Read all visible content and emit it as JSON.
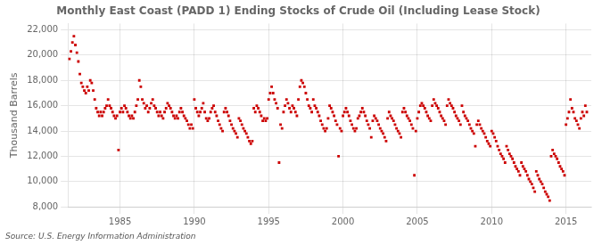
{
  "chart_data": {
    "type": "scatter",
    "title": "Monthly East Coast (PADD 1) Ending Stocks of Crude Oil (Including Lease Stock)",
    "y_label": "Thousand Barrels",
    "annotation": "Source: U.S. Energy Information Administration",
    "color": "#cc0000",
    "marker": "square",
    "grid": true,
    "xlim": [
      1981.5,
      2016.7
    ],
    "xticks": [
      1985,
      1990,
      1995,
      2000,
      2005,
      2010,
      2015
    ],
    "ylim": [
      8000,
      22500
    ],
    "yticks": [
      {
        "value": 8000,
        "label": "8,000"
      },
      {
        "value": 10000,
        "label": "10,000"
      },
      {
        "value": 12000,
        "label": "12,000"
      },
      {
        "value": 14000,
        "label": "14,000"
      },
      {
        "value": 16000,
        "label": "16,000"
      },
      {
        "value": 18000,
        "label": "18,000"
      },
      {
        "value": 20000,
        "label": "20,000"
      },
      {
        "value": 22000,
        "label": "22,000"
      }
    ],
    "x": [
      1981.6,
      1981.7,
      1981.8,
      1981.9,
      1982.0,
      1982.1,
      1982.2,
      1982.3,
      1982.4,
      1982.5,
      1982.6,
      1982.7,
      1982.8,
      1982.9,
      1983.0,
      1983.1,
      1983.2,
      1983.3,
      1983.4,
      1983.5,
      1983.6,
      1983.7,
      1983.8,
      1983.9,
      1984.0,
      1984.1,
      1984.2,
      1984.3,
      1984.4,
      1984.5,
      1984.6,
      1984.7,
      1984.8,
      1984.9,
      1985.0,
      1985.1,
      1985.2,
      1985.3,
      1985.4,
      1985.5,
      1985.6,
      1985.7,
      1985.8,
      1985.9,
      1986.0,
      1986.1,
      1986.2,
      1986.3,
      1986.4,
      1986.5,
      1986.6,
      1986.7,
      1986.8,
      1986.9,
      1987.0,
      1987.1,
      1987.2,
      1987.3,
      1987.4,
      1987.5,
      1987.6,
      1987.7,
      1987.8,
      1987.9,
      1988.0,
      1988.1,
      1988.2,
      1988.3,
      1988.4,
      1988.5,
      1988.6,
      1988.7,
      1988.8,
      1988.9,
      1989.0,
      1989.1,
      1989.2,
      1989.3,
      1989.4,
      1989.5,
      1989.6,
      1989.7,
      1989.8,
      1989.9,
      1990.0,
      1990.1,
      1990.2,
      1990.3,
      1990.4,
      1990.5,
      1990.6,
      1990.7,
      1990.8,
      1990.9,
      1991.0,
      1991.1,
      1991.2,
      1991.3,
      1991.4,
      1991.5,
      1991.6,
      1991.7,
      1991.8,
      1991.9,
      1992.0,
      1992.1,
      1992.2,
      1992.3,
      1992.4,
      1992.5,
      1992.6,
      1992.7,
      1992.8,
      1992.9,
      1993.0,
      1993.1,
      1993.2,
      1993.3,
      1993.4,
      1993.5,
      1993.6,
      1993.7,
      1993.8,
      1993.9,
      1994.0,
      1994.1,
      1994.2,
      1994.3,
      1994.4,
      1994.5,
      1994.6,
      1994.7,
      1994.8,
      1994.9,
      1995.0,
      1995.1,
      1995.2,
      1995.3,
      1995.4,
      1995.5,
      1995.6,
      1995.7,
      1995.8,
      1995.9,
      1996.0,
      1996.1,
      1996.2,
      1996.3,
      1996.4,
      1996.5,
      1996.6,
      1996.7,
      1996.8,
      1996.9,
      1997.0,
      1997.1,
      1997.2,
      1997.3,
      1997.4,
      1997.5,
      1997.6,
      1997.7,
      1997.8,
      1997.9,
      1998.0,
      1998.1,
      1998.2,
      1998.3,
      1998.4,
      1998.5,
      1998.6,
      1998.7,
      1998.8,
      1998.9,
      1999.0,
      1999.1,
      1999.2,
      1999.3,
      1999.4,
      1999.5,
      1999.6,
      1999.7,
      1999.8,
      1999.9,
      2000.0,
      2000.1,
      2000.2,
      2000.3,
      2000.4,
      2000.5,
      2000.6,
      2000.7,
      2000.8,
      2000.9,
      2001.0,
      2001.1,
      2001.2,
      2001.3,
      2001.4,
      2001.5,
      2001.6,
      2001.7,
      2001.8,
      2001.9,
      2002.0,
      2002.1,
      2002.2,
      2002.3,
      2002.4,
      2002.5,
      2002.6,
      2002.7,
      2002.8,
      2002.9,
      2003.0,
      2003.1,
      2003.2,
      2003.3,
      2003.4,
      2003.5,
      2003.6,
      2003.7,
      2003.8,
      2003.9,
      2004.0,
      2004.1,
      2004.2,
      2004.3,
      2004.4,
      2004.5,
      2004.6,
      2004.7,
      2004.8,
      2004.9,
      2005.0,
      2005.1,
      2005.2,
      2005.3,
      2005.4,
      2005.5,
      2005.6,
      2005.7,
      2005.8,
      2005.9,
      2006.0,
      2006.1,
      2006.2,
      2006.3,
      2006.4,
      2006.5,
      2006.6,
      2006.7,
      2006.8,
      2006.9,
      2007.0,
      2007.1,
      2007.2,
      2007.3,
      2007.4,
      2007.5,
      2007.6,
      2007.7,
      2007.8,
      2007.9,
      2008.0,
      2008.1,
      2008.2,
      2008.3,
      2008.4,
      2008.5,
      2008.6,
      2008.7,
      2008.8,
      2008.9,
      2009.0,
      2009.1,
      2009.2,
      2009.3,
      2009.4,
      2009.5,
      2009.6,
      2009.7,
      2009.8,
      2009.9,
      2010.0,
      2010.1,
      2010.2,
      2010.3,
      2010.4,
      2010.5,
      2010.6,
      2010.7,
      2010.8,
      2010.9,
      2011.0,
      2011.1,
      2011.2,
      2011.3,
      2011.4,
      2011.5,
      2011.6,
      2011.7,
      2011.8,
      2011.9,
      2012.0,
      2012.1,
      2012.2,
      2012.3,
      2012.4,
      2012.5,
      2012.6,
      2012.7,
      2012.8,
      2012.9,
      2013.0,
      2013.1,
      2013.2,
      2013.3,
      2013.4,
      2013.5,
      2013.6,
      2013.7,
      2013.8,
      2013.9,
      2014.0,
      2014.1,
      2014.2,
      2014.3,
      2014.4,
      2014.5,
      2014.6,
      2014.7,
      2014.8,
      2014.9,
      2015.0,
      2015.1,
      2015.2,
      2015.3,
      2015.4,
      2015.5,
      2015.6,
      2015.7,
      2015.8,
      2015.9,
      2016.0,
      2016.1,
      2016.2,
      2016.3,
      2016.4
    ],
    "values": [
      19700,
      20300,
      21000,
      21500,
      20800,
      20200,
      19500,
      18500,
      17800,
      17500,
      17200,
      17000,
      17500,
      17200,
      18000,
      17800,
      17200,
      16500,
      15800,
      15500,
      15200,
      15500,
      15200,
      15500,
      15800,
      16000,
      16500,
      16000,
      15800,
      15500,
      15200,
      15000,
      15200,
      12500,
      15500,
      15800,
      15500,
      16000,
      15800,
      15500,
      15200,
      15000,
      15200,
      15000,
      15500,
      16000,
      16500,
      18000,
      17500,
      16500,
      16200,
      15800,
      16000,
      15500,
      15800,
      16200,
      16500,
      16000,
      15800,
      15500,
      15200,
      15500,
      15200,
      15000,
      15500,
      15800,
      16200,
      16000,
      15800,
      15500,
      15200,
      15000,
      15200,
      15000,
      15500,
      15800,
      15500,
      15200,
      15000,
      14800,
      14500,
      14200,
      14500,
      14200,
      16500,
      15800,
      15500,
      15200,
      15500,
      15800,
      16200,
      15500,
      15000,
      14800,
      15000,
      15500,
      15800,
      16000,
      15500,
      15200,
      14800,
      14500,
      14200,
      14000,
      15500,
      15800,
      15500,
      15200,
      14800,
      14500,
      14200,
      14000,
      13800,
      13500,
      15000,
      14800,
      14500,
      14200,
      14000,
      13800,
      13500,
      13200,
      13000,
      13200,
      15800,
      15500,
      16000,
      15800,
      15500,
      15200,
      14800,
      15000,
      14800,
      15000,
      16500,
      17000,
      17500,
      17000,
      16500,
      16200,
      15800,
      11500,
      14500,
      14200,
      15500,
      16000,
      16500,
      16200,
      15800,
      15500,
      16000,
      15800,
      15500,
      15200,
      16500,
      17500,
      18000,
      17800,
      17500,
      17000,
      16500,
      16000,
      15800,
      15500,
      16500,
      16000,
      15800,
      15500,
      15200,
      14800,
      14500,
      14200,
      14000,
      14200,
      15000,
      16000,
      15800,
      15500,
      15200,
      14800,
      14500,
      12000,
      14200,
      14000,
      15200,
      15500,
      15800,
      15500,
      15200,
      14800,
      14500,
      14200,
      14000,
      14200,
      15000,
      15200,
      15500,
      15800,
      15500,
      15200,
      14800,
      14500,
      14200,
      13500,
      14800,
      15200,
      15000,
      14800,
      14500,
      14200,
      14000,
      13800,
      13500,
      13200,
      15000,
      15500,
      15200,
      15000,
      14800,
      14500,
      14200,
      14000,
      13800,
      13500,
      15500,
      15800,
      15500,
      15200,
      15000,
      14800,
      14500,
      14200,
      10500,
      14000,
      15000,
      15500,
      16000,
      16200,
      16000,
      15800,
      15500,
      15200,
      15000,
      14800,
      16000,
      16500,
      16200,
      16000,
      15800,
      15500,
      15200,
      15000,
      14800,
      14500,
      16000,
      16500,
      16200,
      16000,
      15800,
      15500,
      15200,
      15000,
      14800,
      14500,
      16000,
      15500,
      15200,
      15000,
      14800,
      14500,
      14200,
      14000,
      13800,
      12800,
      14500,
      14800,
      14500,
      14200,
      14000,
      13800,
      13500,
      13200,
      13000,
      12800,
      14000,
      13800,
      13500,
      13200,
      12800,
      12500,
      12200,
      12000,
      11800,
      11500,
      12800,
      12500,
      12200,
      12000,
      11800,
      11500,
      11200,
      11000,
      10800,
      10500,
      11500,
      11200,
      11000,
      10800,
      10500,
      10200,
      10000,
      9800,
      9500,
      9200,
      10800,
      10500,
      10200,
      10000,
      9800,
      9500,
      9200,
      9000,
      8800,
      8500,
      12000,
      12500,
      12200,
      12000,
      11800,
      11500,
      11200,
      11000,
      10800,
      10500,
      14500,
      15000,
      15500,
      16500,
      15800,
      15500,
      15000,
      14800,
      14500,
      14200,
      15000,
      15500,
      15200,
      16000,
      15500
    ]
  }
}
